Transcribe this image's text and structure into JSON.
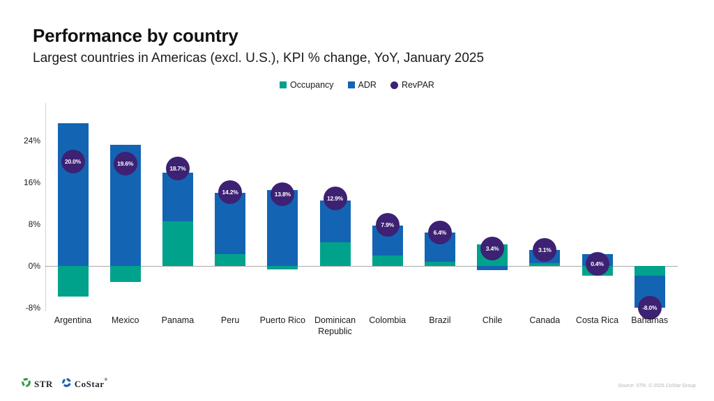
{
  "page": {
    "title": "Performance by country",
    "subtitle": "Largest countries in Americas (excl. U.S.), KPI % change, YoY, January 2025"
  },
  "chart_data": {
    "type": "bar",
    "subtype": "stacked-bars-with-point-markers",
    "title": "Performance by country",
    "subtitle": "Largest countries in Americas (excl. U.S.), KPI % change, YoY, January 2025",
    "unit": "% change YoY",
    "categories": [
      "Argentina",
      "Mexico",
      "Panama",
      "Peru",
      "Puerto Rico",
      "Dominican Republic",
      "Colombia",
      "Brazil",
      "Chile",
      "Canada",
      "Costa Rica",
      "Bahamas"
    ],
    "series": [
      {
        "name": "Occupancy",
        "render": "bar",
        "color": "#00a28c",
        "values": [
          -5.8,
          -3.0,
          8.5,
          2.3,
          -0.7,
          4.6,
          2.0,
          0.8,
          4.2,
          0.5,
          -1.9,
          -1.8
        ]
      },
      {
        "name": "ADR",
        "render": "bar",
        "color": "#1464b4",
        "values": [
          27.4,
          23.2,
          9.4,
          11.7,
          14.5,
          8.0,
          5.8,
          5.6,
          -0.8,
          2.6,
          2.3,
          -6.2
        ]
      },
      {
        "name": "RevPAR",
        "render": "point",
        "color": "#3d2173",
        "values": [
          20.0,
          19.6,
          18.7,
          14.2,
          13.8,
          12.9,
          7.9,
          6.4,
          3.4,
          3.1,
          0.4,
          -8.0
        ],
        "labels": [
          "20.0%",
          "19.6%",
          "18.7%",
          "14.2%",
          "13.8%",
          "12.9%",
          "7.9%",
          "6.4%",
          "3.4%",
          "3.1%",
          "0.4%",
          "-8.0%"
        ]
      }
    ],
    "yticks": [
      {
        "value": 24,
        "label": "24%"
      },
      {
        "value": 16,
        "label": "16%"
      },
      {
        "value": 8,
        "label": "8%"
      },
      {
        "value": 0,
        "label": "0%"
      },
      {
        "value": -8,
        "label": "-8%"
      }
    ],
    "ylim": [
      -8.7,
      31.2
    ],
    "grid": "zero-line-only",
    "legend_position": "top-center"
  },
  "footer": {
    "str_logo_text": "STR",
    "costar_logo_text": "CoStar",
    "costar_reg_mark": "®",
    "source_text": "Source: STR. © 2025 CoStar Group",
    "str_icon_color": "#3a9a47",
    "costar_icon_color": "#1b62a8"
  }
}
